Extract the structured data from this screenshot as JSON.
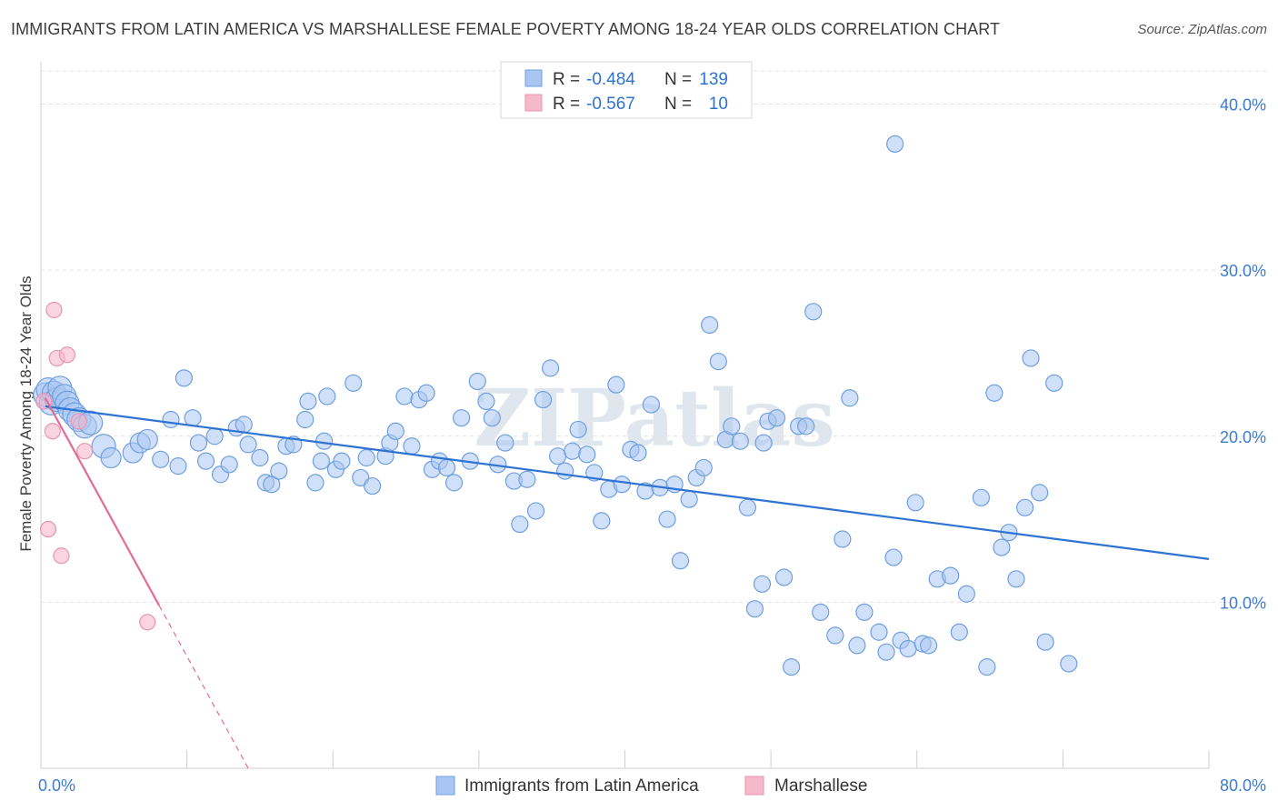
{
  "chart_data": {
    "type": "scatter",
    "title": "IMMIGRANTS FROM LATIN AMERICA VS MARSHALLESE FEMALE POVERTY AMONG 18-24 YEAR OLDS CORRELATION CHART",
    "source": "Source: ZipAtlas.com",
    "watermark": "ZIPatlas",
    "ylabel": "Female Poverty Among 18-24 Year Olds",
    "xlabel": "",
    "xlim": [
      0,
      80
    ],
    "ylim": [
      0,
      42
    ],
    "x_tick_labels": [
      {
        "value": 0,
        "label": "0.0%"
      },
      {
        "value": 80,
        "label": "80.0%"
      }
    ],
    "y_tick_labels": [
      {
        "value": 10,
        "label": "10.0%"
      },
      {
        "value": 20,
        "label": "20.0%"
      },
      {
        "value": 30,
        "label": "30.0%"
      },
      {
        "value": 40,
        "label": "40.0%"
      }
    ],
    "grid": true,
    "legend_placement": "top-center",
    "stats": [
      {
        "r_label": "R =",
        "r_value": "-0.484",
        "n_label": "N =",
        "n_value": "139",
        "color": "#a9c6f2"
      },
      {
        "r_label": "R =",
        "r_value": "-0.567",
        "n_label": "N =",
        "n_value": "10",
        "color": "#f6b8cb"
      }
    ],
    "series": [
      {
        "name": "Immigrants from Latin America",
        "color": "#a9c6f2",
        "stroke": "#6f9fe0",
        "line_color": "#2e72d2",
        "trend": [
          [
            0.3,
            21.8
          ],
          [
            80,
            12.6
          ]
        ],
        "points": [
          [
            0.3,
            22.5
          ],
          [
            0.5,
            22.8
          ],
          [
            0.7,
            22.0
          ],
          [
            0.9,
            22.6
          ],
          [
            1.1,
            22.2
          ],
          [
            1.3,
            22.9
          ],
          [
            1.6,
            22.4
          ],
          [
            1.8,
            22.0
          ],
          [
            2.0,
            21.6
          ],
          [
            2.3,
            21.3
          ],
          [
            2.6,
            21.0
          ],
          [
            3.0,
            20.6
          ],
          [
            3.4,
            20.8
          ],
          [
            4.3,
            19.4
          ],
          [
            4.8,
            18.7
          ],
          [
            6.3,
            19.0
          ],
          [
            6.8,
            19.6
          ],
          [
            7.3,
            19.8
          ],
          [
            8.2,
            18.6
          ],
          [
            8.9,
            21.0
          ],
          [
            9.4,
            18.2
          ],
          [
            9.8,
            23.5
          ],
          [
            10.4,
            21.1
          ],
          [
            10.8,
            19.6
          ],
          [
            11.3,
            18.5
          ],
          [
            11.9,
            20.0
          ],
          [
            12.3,
            17.7
          ],
          [
            12.9,
            18.3
          ],
          [
            13.4,
            20.5
          ],
          [
            13.9,
            20.7
          ],
          [
            14.2,
            19.5
          ],
          [
            15.0,
            18.7
          ],
          [
            15.4,
            17.2
          ],
          [
            15.8,
            17.1
          ],
          [
            16.3,
            17.9
          ],
          [
            16.8,
            19.4
          ],
          [
            17.3,
            19.5
          ],
          [
            18.1,
            21.0
          ],
          [
            18.3,
            22.1
          ],
          [
            18.8,
            17.2
          ],
          [
            19.2,
            18.5
          ],
          [
            19.4,
            19.7
          ],
          [
            19.6,
            22.4
          ],
          [
            20.2,
            18.0
          ],
          [
            20.6,
            18.5
          ],
          [
            21.4,
            23.2
          ],
          [
            21.9,
            17.5
          ],
          [
            22.3,
            18.7
          ],
          [
            22.7,
            17.0
          ],
          [
            23.6,
            18.8
          ],
          [
            23.9,
            19.6
          ],
          [
            24.3,
            20.3
          ],
          [
            24.9,
            22.4
          ],
          [
            25.4,
            19.4
          ],
          [
            25.9,
            22.2
          ],
          [
            26.4,
            22.6
          ],
          [
            26.8,
            18.0
          ],
          [
            27.3,
            18.5
          ],
          [
            27.8,
            18.1
          ],
          [
            28.3,
            17.2
          ],
          [
            28.8,
            21.1
          ],
          [
            29.4,
            18.5
          ],
          [
            29.9,
            23.3
          ],
          [
            30.5,
            22.1
          ],
          [
            30.9,
            21.1
          ],
          [
            31.3,
            18.3
          ],
          [
            31.8,
            19.6
          ],
          [
            32.4,
            17.3
          ],
          [
            32.8,
            14.7
          ],
          [
            33.3,
            17.4
          ],
          [
            33.9,
            15.5
          ],
          [
            34.4,
            22.2
          ],
          [
            34.9,
            24.1
          ],
          [
            35.4,
            18.8
          ],
          [
            35.9,
            17.9
          ],
          [
            36.4,
            19.1
          ],
          [
            36.8,
            20.4
          ],
          [
            37.4,
            18.9
          ],
          [
            37.9,
            17.8
          ],
          [
            38.4,
            14.9
          ],
          [
            38.9,
            16.8
          ],
          [
            39.4,
            23.1
          ],
          [
            39.8,
            17.1
          ],
          [
            40.4,
            19.2
          ],
          [
            40.9,
            19.0
          ],
          [
            41.4,
            16.7
          ],
          [
            41.8,
            21.9
          ],
          [
            42.4,
            16.9
          ],
          [
            42.9,
            15.0
          ],
          [
            43.4,
            17.1
          ],
          [
            43.8,
            12.5
          ],
          [
            44.4,
            16.2
          ],
          [
            44.9,
            17.5
          ],
          [
            45.4,
            18.1
          ],
          [
            45.8,
            26.7
          ],
          [
            46.4,
            24.5
          ],
          [
            46.9,
            19.8
          ],
          [
            47.3,
            20.6
          ],
          [
            47.9,
            19.7
          ],
          [
            48.4,
            15.7
          ],
          [
            48.9,
            9.6
          ],
          [
            49.4,
            11.1
          ],
          [
            49.8,
            20.9
          ],
          [
            50.4,
            21.1
          ],
          [
            50.9,
            11.5
          ],
          [
            51.4,
            6.1
          ],
          [
            51.9,
            20.6
          ],
          [
            52.4,
            20.6
          ],
          [
            52.9,
            27.5
          ],
          [
            53.4,
            9.4
          ],
          [
            54.4,
            8.0
          ],
          [
            54.9,
            13.8
          ],
          [
            55.4,
            22.3
          ],
          [
            55.9,
            7.4
          ],
          [
            56.4,
            9.4
          ],
          [
            57.4,
            8.2
          ],
          [
            57.9,
            7.0
          ],
          [
            58.4,
            12.7
          ],
          [
            58.9,
            7.7
          ],
          [
            59.4,
            7.2
          ],
          [
            59.9,
            16.0
          ],
          [
            60.4,
            7.5
          ],
          [
            60.8,
            7.4
          ],
          [
            61.4,
            11.4
          ],
          [
            62.3,
            11.6
          ],
          [
            62.9,
            8.2
          ],
          [
            63.4,
            10.5
          ],
          [
            64.4,
            16.3
          ],
          [
            64.8,
            6.1
          ],
          [
            65.3,
            22.6
          ],
          [
            65.8,
            13.3
          ],
          [
            66.3,
            14.2
          ],
          [
            66.8,
            11.4
          ],
          [
            67.4,
            15.7
          ],
          [
            67.8,
            24.7
          ],
          [
            68.4,
            16.6
          ],
          [
            68.8,
            7.6
          ],
          [
            69.4,
            23.2
          ],
          [
            70.4,
            6.3
          ],
          [
            58.5,
            37.6
          ],
          [
            49.5,
            19.6
          ]
        ]
      },
      {
        "name": "Marshallese",
        "color": "#f6b8cb",
        "stroke": "#e895ae",
        "line_color": "#e46b95",
        "trend_solid": [
          [
            0.3,
            22.3
          ],
          [
            8.1,
            9.8
          ]
        ],
        "trend_dashed": [
          [
            8.1,
            9.8
          ],
          [
            14.2,
            0
          ]
        ],
        "points": [
          [
            0.2,
            22.1
          ],
          [
            0.5,
            14.4
          ],
          [
            0.8,
            20.3
          ],
          [
            0.9,
            27.6
          ],
          [
            1.1,
            24.7
          ],
          [
            1.4,
            12.8
          ],
          [
            1.8,
            24.9
          ],
          [
            2.6,
            20.9
          ],
          [
            3.0,
            19.1
          ],
          [
            7.3,
            8.8
          ]
        ]
      }
    ]
  }
}
